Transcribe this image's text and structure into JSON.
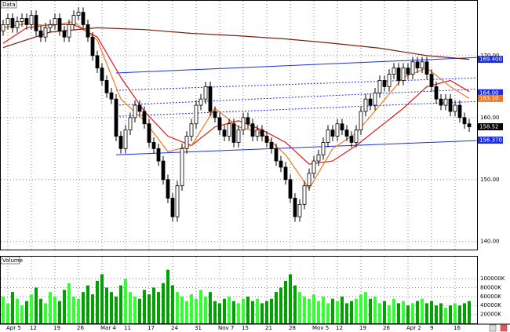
{
  "chart_data": {
    "type": "candlestick",
    "title": "Data",
    "volume_title": "Volume",
    "categories": [
      null,
      "Apr 5",
      null,
      null,
      null,
      null,
      "12",
      null,
      null,
      null,
      null,
      "19",
      null,
      null,
      null,
      null,
      "26",
      null,
      null,
      null,
      null,
      "Mar 4",
      null,
      null,
      null,
      null,
      "11",
      null,
      null,
      null,
      null,
      "17",
      null,
      null,
      null,
      null,
      "24",
      null,
      null,
      null,
      null,
      "31",
      null,
      null,
      null,
      null,
      "Nov 7",
      null,
      null,
      null,
      null,
      "15",
      null,
      null,
      null,
      null,
      "21",
      null,
      null,
      null,
      null,
      "28",
      null,
      null,
      null,
      null,
      "Mov 5",
      null,
      null,
      null,
      null,
      "12",
      null,
      null,
      null,
      null,
      "19",
      null,
      null,
      null,
      null,
      "26",
      null,
      null,
      null,
      null,
      "Apr 2",
      null,
      null,
      null,
      null,
      "9",
      null,
      null,
      null,
      null,
      "16",
      null,
      null,
      null
    ],
    "ohlc": [
      [
        174,
        175.8,
        173.2,
        175
      ],
      [
        175,
        176.8,
        174.2,
        176
      ],
      [
        176,
        176.8,
        173.7,
        174.5
      ],
      [
        174.5,
        176.3,
        173.7,
        175.5
      ],
      [
        175.5,
        176.8,
        174.7,
        176
      ],
      [
        176,
        176.8,
        174.2,
        175
      ],
      [
        175,
        177.3,
        174.2,
        176.5
      ],
      [
        176.5,
        177.3,
        173.2,
        174
      ],
      [
        174,
        174.8,
        172.2,
        173
      ],
      [
        173,
        175.3,
        172.2,
        174.5
      ],
      [
        174.5,
        175.8,
        173.7,
        175
      ],
      [
        175,
        176.8,
        174.2,
        176
      ],
      [
        176,
        176.8,
        173.2,
        174
      ],
      [
        174,
        174.8,
        172.2,
        173
      ],
      [
        173,
        175.8,
        172.2,
        175
      ],
      [
        175,
        177.3,
        174.2,
        176.5
      ],
      [
        176.5,
        177.8,
        175.7,
        177
      ],
      [
        177,
        177.8,
        174.2,
        175
      ],
      [
        175,
        175.8,
        172.2,
        173
      ],
      [
        173,
        173.8,
        169.2,
        170
      ],
      [
        170,
        170.8,
        167.2,
        168
      ],
      [
        168,
        168.8,
        165.2,
        166
      ],
      [
        166,
        166.8,
        163.2,
        164
      ],
      [
        164,
        164.8,
        162.2,
        163
      ],
      [
        163,
        163.8,
        156.2,
        157
      ],
      [
        157,
        157.8,
        154.2,
        155
      ],
      [
        155,
        158.8,
        154.2,
        158
      ],
      [
        158,
        160.8,
        157.2,
        160
      ],
      [
        160,
        162.8,
        159.2,
        162
      ],
      [
        162,
        162.8,
        160.2,
        161
      ],
      [
        161,
        161.8,
        158.2,
        159
      ],
      [
        159,
        159.8,
        155.2,
        156
      ],
      [
        156,
        156.8,
        154.2,
        155
      ],
      [
        155,
        155.8,
        152.2,
        153
      ],
      [
        153,
        153.8,
        149.2,
        150
      ],
      [
        150,
        150.8,
        146.2,
        147
      ],
      [
        147,
        147.8,
        143.2,
        144
      ],
      [
        144,
        149.8,
        143.2,
        149
      ],
      [
        149,
        155.8,
        148.2,
        155
      ],
      [
        155,
        157.8,
        154.2,
        157
      ],
      [
        157,
        159.8,
        156.2,
        159
      ],
      [
        159,
        162.8,
        158.2,
        162
      ],
      [
        162,
        163.8,
        161.2,
        163
      ],
      [
        163,
        165.8,
        162.2,
        165
      ],
      [
        165,
        165.8,
        160.2,
        161
      ],
      [
        161,
        161.8,
        159.2,
        160
      ],
      [
        160,
        160.8,
        157.2,
        158
      ],
      [
        158,
        158.8,
        156.2,
        157
      ],
      [
        157,
        159.8,
        156.2,
        159
      ],
      [
        159,
        159.8,
        155.2,
        156
      ],
      [
        156,
        158.8,
        155.2,
        158
      ],
      [
        158,
        160.8,
        157.2,
        160
      ],
      [
        160,
        160.8,
        158.2,
        159
      ],
      [
        159,
        159.8,
        156.2,
        157
      ],
      [
        157,
        158.8,
        156.2,
        158
      ],
      [
        158,
        158.8,
        156.2,
        157
      ],
      [
        157,
        157.8,
        155.2,
        156
      ],
      [
        156,
        156.8,
        154.2,
        155
      ],
      [
        155,
        155.8,
        152.2,
        153
      ],
      [
        153,
        153.8,
        151.2,
        152
      ],
      [
        152,
        152.8,
        149.2,
        150
      ],
      [
        150,
        150.8,
        146.2,
        147
      ],
      [
        147,
        147.8,
        143.2,
        144
      ],
      [
        144,
        146.8,
        143.2,
        146
      ],
      [
        146,
        149.8,
        145.2,
        149
      ],
      [
        149,
        151.8,
        148.2,
        151
      ],
      [
        151,
        153.8,
        150.2,
        153
      ],
      [
        153,
        154.8,
        152.2,
        154
      ],
      [
        154,
        156.8,
        153.2,
        156
      ],
      [
        156,
        158.8,
        155.2,
        158
      ],
      [
        158,
        158.8,
        156.2,
        157
      ],
      [
        157,
        159.8,
        156.2,
        159
      ],
      [
        159,
        159.8,
        157.2,
        158
      ],
      [
        158,
        158.8,
        156.2,
        157
      ],
      [
        157,
        157.8,
        155.2,
        156
      ],
      [
        156,
        158.8,
        155.2,
        158
      ],
      [
        158,
        161.8,
        157.2,
        161
      ],
      [
        161,
        163.8,
        160.2,
        163
      ],
      [
        163,
        163.8,
        161.2,
        162
      ],
      [
        162,
        164.8,
        161.2,
        164
      ],
      [
        164,
        166.8,
        163.2,
        166
      ],
      [
        166,
        166.8,
        164.2,
        165
      ],
      [
        165,
        167.8,
        164.2,
        167
      ],
      [
        167,
        168.8,
        166.2,
        168
      ],
      [
        168,
        168.8,
        165.2,
        166
      ],
      [
        166,
        168.8,
        165.2,
        168
      ],
      [
        168,
        168.8,
        166.2,
        167
      ],
      [
        167,
        169.8,
        166.2,
        169
      ],
      [
        169,
        169.8,
        167.2,
        168
      ],
      [
        168,
        169.8,
        167.2,
        169
      ],
      [
        169,
        169.8,
        166.2,
        167
      ],
      [
        167,
        167.8,
        164.2,
        165
      ],
      [
        165,
        165.8,
        162.2,
        163
      ],
      [
        163,
        163.8,
        161.2,
        162
      ],
      [
        162,
        163.8,
        161.2,
        163
      ],
      [
        163,
        163.8,
        160.2,
        161
      ],
      [
        161,
        162.8,
        160.2,
        162
      ],
      [
        162,
        162.8,
        159.2,
        160
      ],
      [
        160,
        160.8,
        158.2,
        159
      ],
      [
        159,
        159.8,
        157.7,
        158.52
      ]
    ],
    "up_color": "#ffffff",
    "down_color": "#000000",
    "moving_averages": [
      {
        "color": "#7a1f12",
        "x": [
          0,
          10,
          20,
          30,
          40,
          50,
          60,
          70,
          80,
          90,
          99
        ],
        "values": [
          171.3,
          173.8,
          174.5,
          174.2,
          173.6,
          173.2,
          172.7,
          172.0,
          171.2,
          170.0,
          169.4
        ]
      },
      {
        "color": "#e01818",
        "x": [
          0,
          5,
          10,
          15,
          20,
          25,
          30,
          35,
          40,
          45,
          50,
          55,
          60,
          65,
          70,
          75,
          80,
          85,
          90,
          95,
          99
        ],
        "values": [
          172.0,
          174.5,
          175.0,
          175.0,
          173.0,
          166.5,
          161.0,
          157.0,
          155.5,
          158.5,
          159.5,
          158.0,
          156.0,
          152.5,
          153.0,
          155.5,
          158.5,
          161.5,
          165.0,
          166.0,
          164.2
        ]
      },
      {
        "color": "#f07820",
        "x": [
          0,
          5,
          10,
          15,
          20,
          25,
          30,
          35,
          40,
          45,
          50,
          55,
          60,
          65,
          70,
          75,
          80,
          85,
          90,
          95,
          99
        ],
        "values": [
          174.5,
          175.2,
          174.8,
          175.5,
          172.5,
          163.0,
          159.5,
          154.5,
          155.5,
          161.5,
          158.5,
          157.5,
          154.0,
          148.5,
          155.0,
          157.5,
          162.0,
          166.5,
          168.0,
          165.0,
          163.1
        ]
      }
    ],
    "trendlines": [
      {
        "color": "#1a2ee0",
        "dashed": false,
        "x": [
          24,
          100.6
        ],
        "values": [
          167.2,
          169.7
        ]
      },
      {
        "color": "#1a2ee0",
        "dashed": false,
        "x": [
          24,
          100.6
        ],
        "values": [
          154.0,
          156.3
        ]
      },
      {
        "color": "#1a2ee0",
        "dashed": true,
        "x": [
          24,
          100.6
        ],
        "values": [
          164.4,
          166.4
        ]
      },
      {
        "color": "#1a2ee0",
        "dashed": true,
        "x": [
          24,
          100.6
        ],
        "values": [
          162.0,
          164.6
        ]
      },
      {
        "color": "#1a2ee0",
        "dashed": true,
        "x": [
          24,
          100.6
        ],
        "values": [
          160.2,
          162.6
        ]
      }
    ],
    "ylim": [
      138.7,
      178.6
    ],
    "yticks": [
      {
        "value": 140,
        "label": "140.00"
      },
      {
        "value": 150,
        "label": "150.00"
      },
      {
        "value": 160,
        "label": "160.00"
      },
      {
        "value": 170,
        "label": "170.00"
      }
    ],
    "price_labels": [
      {
        "value": 169.4,
        "label": "169.400",
        "color": "#1a2ee0"
      },
      {
        "value": 164,
        "label": "164.00",
        "color": "#1a2ee0"
      },
      {
        "value": 163.1,
        "label": "163.10",
        "color": "#f07820"
      },
      {
        "value": 158.52,
        "label": "158.52",
        "color": "#000000"
      },
      {
        "value": 156.37,
        "label": "156.370",
        "color": "#1a2ee0"
      }
    ],
    "volume": [
      60000,
      45000,
      70000,
      55000,
      40000,
      50000,
      65000,
      80000,
      55000,
      45000,
      70000,
      60000,
      50000,
      75000,
      90000,
      60000,
      55000,
      70000,
      85000,
      65000,
      95000,
      110000,
      80000,
      70000,
      60000,
      85000,
      100000,
      70000,
      60000,
      55000,
      75000,
      65000,
      80000,
      70000,
      90000,
      120000,
      85000,
      70000,
      60000,
      50000,
      65000,
      55000,
      75000,
      60000,
      70000,
      50000,
      45000,
      55000,
      60000,
      50000,
      45000,
      55000,
      60000,
      50000,
      55000,
      45000,
      50000,
      55000,
      70000,
      80000,
      95000,
      110000,
      85000,
      70000,
      60000,
      55000,
      65000,
      50000,
      60000,
      45000,
      55000,
      50000,
      60000,
      45000,
      50000,
      55000,
      65000,
      70000,
      55000,
      60000,
      45000,
      50000,
      40000,
      55000,
      45000,
      50000,
      40000,
      45000,
      50000,
      55000,
      45000,
      50000,
      40000,
      45000,
      35000,
      40000,
      45000,
      40000,
      45000,
      50000
    ],
    "volume_up_color": "#33ff33",
    "volume_down_color": "#00a000",
    "vlim": [
      0,
      144000
    ],
    "vticks": [
      {
        "value": 20000,
        "label": "20000K"
      },
      {
        "value": 40000,
        "label": "40000K"
      },
      {
        "value": 60000,
        "label": "60000K"
      },
      {
        "value": 80000,
        "label": "80000K"
      },
      {
        "value": 100000,
        "label": "100000K"
      }
    ],
    "grid": true
  }
}
